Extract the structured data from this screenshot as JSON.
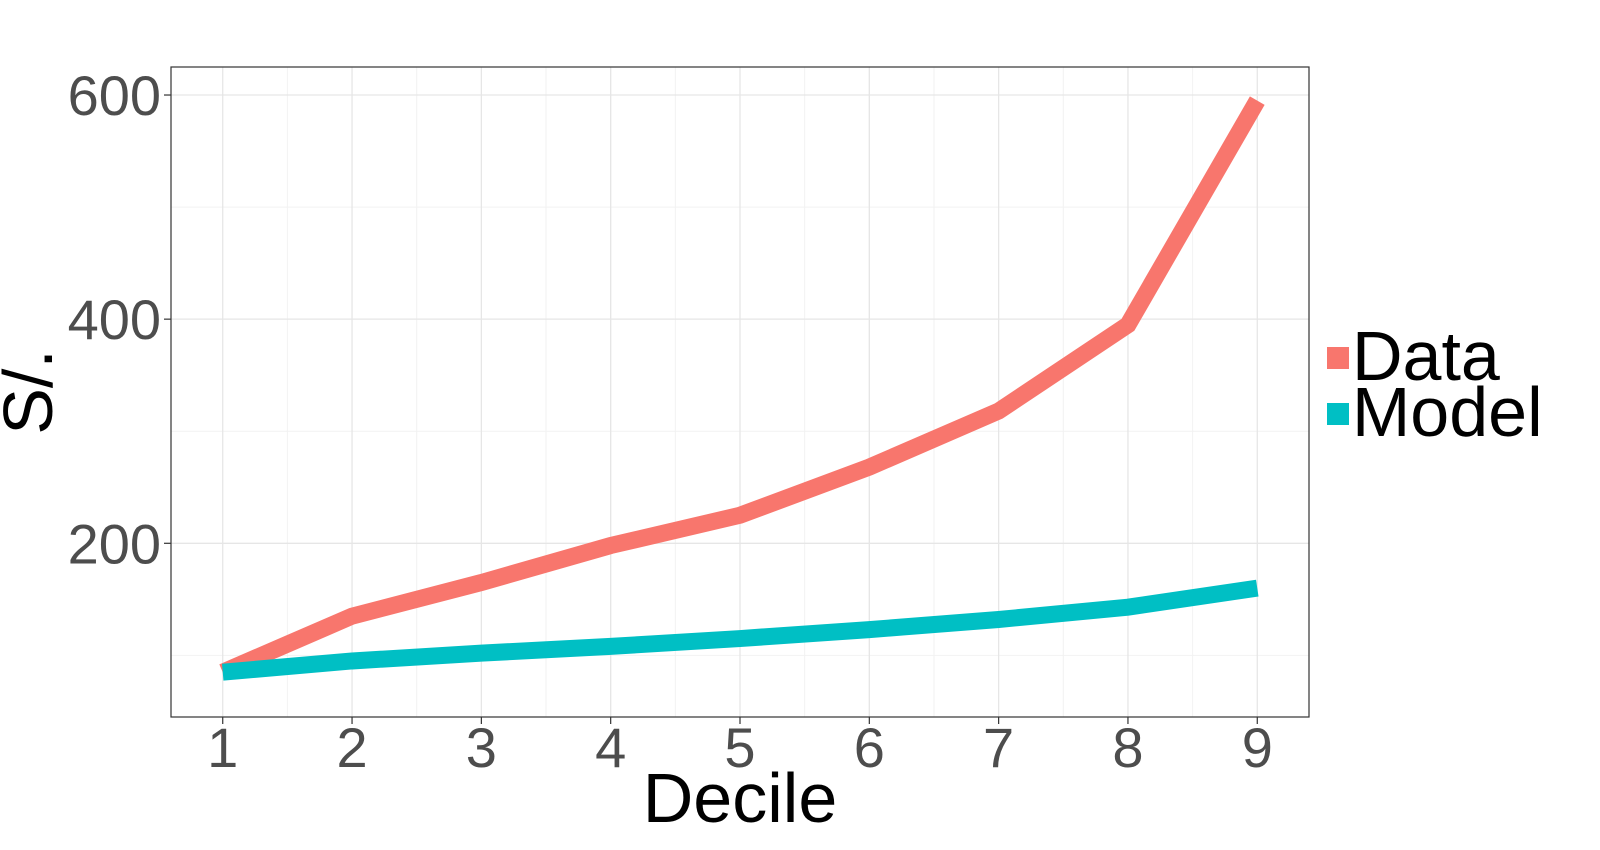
{
  "chart_data": {
    "type": "line",
    "title": "",
    "xlabel": "Decile",
    "ylabel": "S/.",
    "x": [
      1,
      2,
      3,
      4,
      5,
      6,
      7,
      8,
      9
    ],
    "x_tick_labels": [
      "1",
      "2",
      "3",
      "4",
      "5",
      "6",
      "7",
      "8",
      "9"
    ],
    "xlim": [
      0.6,
      9.4
    ],
    "ylim": [
      45,
      625
    ],
    "y_major_ticks": [
      200,
      400,
      600
    ],
    "y_major_tick_labels": [
      "200",
      "400",
      "600"
    ],
    "y_minor_ticks": [
      100,
      300,
      500
    ],
    "grid": true,
    "legend_position": "right",
    "series": [
      {
        "name": "Data",
        "color": "#F8766D",
        "values": [
          85,
          135,
          165,
          198,
          225,
          268,
          318,
          395,
          595
        ]
      },
      {
        "name": "Model",
        "color": "#00BFC4",
        "values": [
          85,
          95,
          102,
          108,
          115,
          123,
          132,
          143,
          160
        ]
      }
    ]
  }
}
